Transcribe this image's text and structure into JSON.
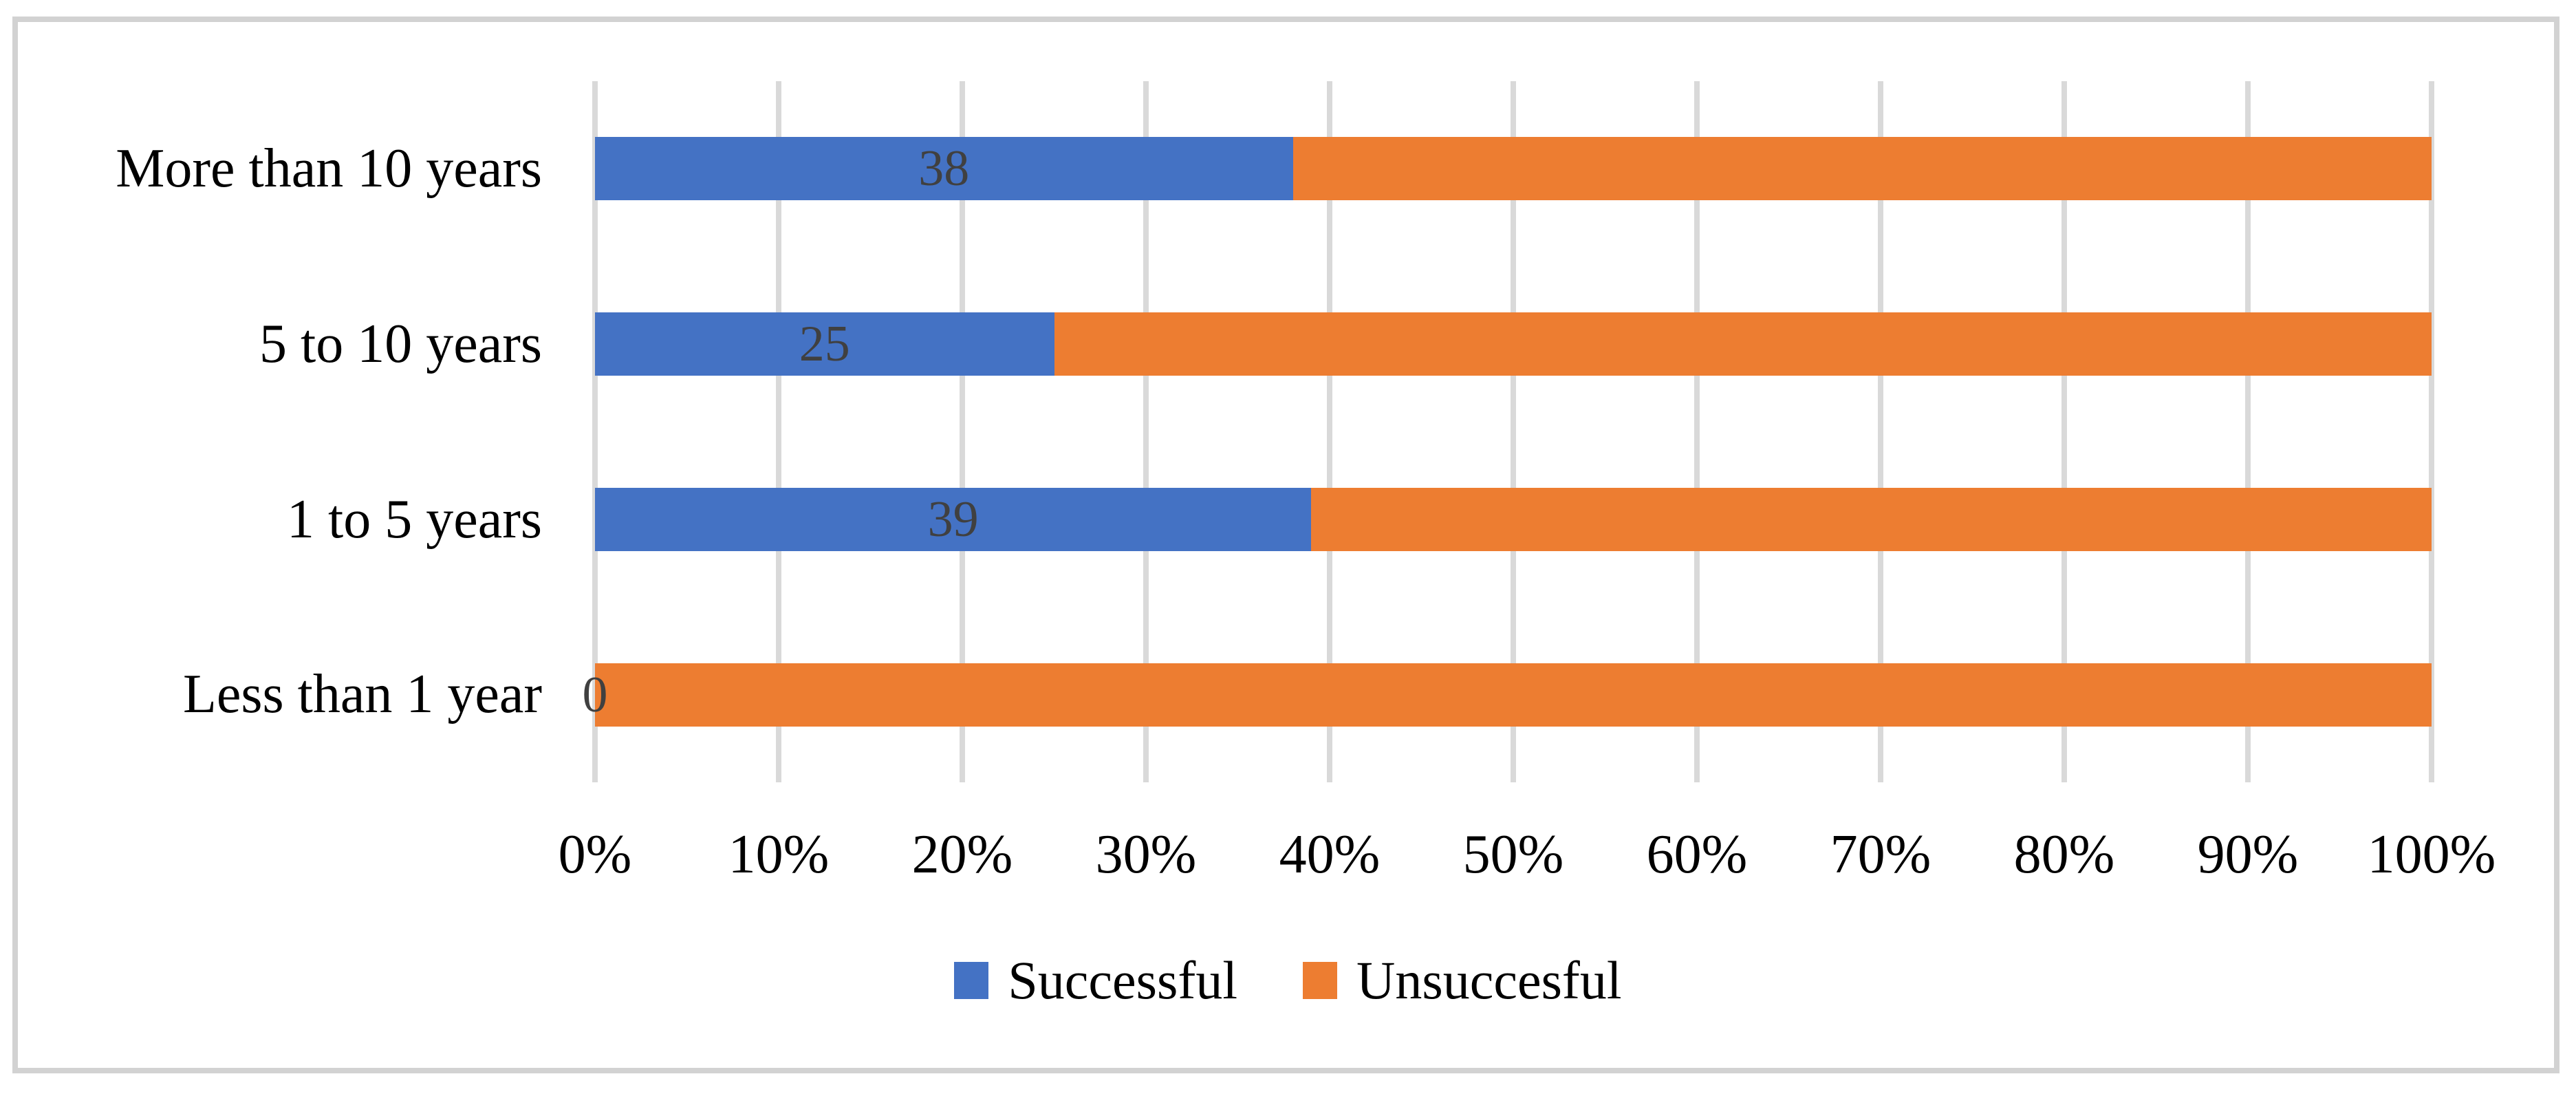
{
  "chart_data": {
    "type": "bar",
    "orientation": "horizontal",
    "stacked": true,
    "unit": "percent",
    "title": "",
    "categories": [
      "More than 10 years",
      "5 to 10 years",
      "1 to 5 years",
      "Less than 1 year"
    ],
    "series": [
      {
        "name": "Successful",
        "color": "#4472C4",
        "values": [
          38,
          25,
          39,
          0
        ]
      },
      {
        "name": "Unsuccesful",
        "color": "#ED7D31",
        "values": [
          62,
          75,
          61,
          100
        ]
      }
    ],
    "data_labels": {
      "shown_for_series": "Successful",
      "values": [
        "38",
        "25",
        "39",
        "0"
      ],
      "color": "#404040"
    },
    "x_axis": {
      "min": 0,
      "max": 100,
      "tick_step": 10,
      "tick_labels": [
        "0%",
        "10%",
        "20%",
        "30%",
        "40%",
        "50%",
        "60%",
        "70%",
        "80%",
        "90%",
        "100%"
      ]
    },
    "grid": "vertical",
    "gridline_color": "#D9D9D9",
    "frame_border_color": "#D2D2D2",
    "legend": {
      "position": "bottom",
      "entries": [
        {
          "label": "Successful",
          "color": "#4472C4"
        },
        {
          "label": "Unsuccesful",
          "color": "#ED7D31"
        }
      ]
    }
  }
}
